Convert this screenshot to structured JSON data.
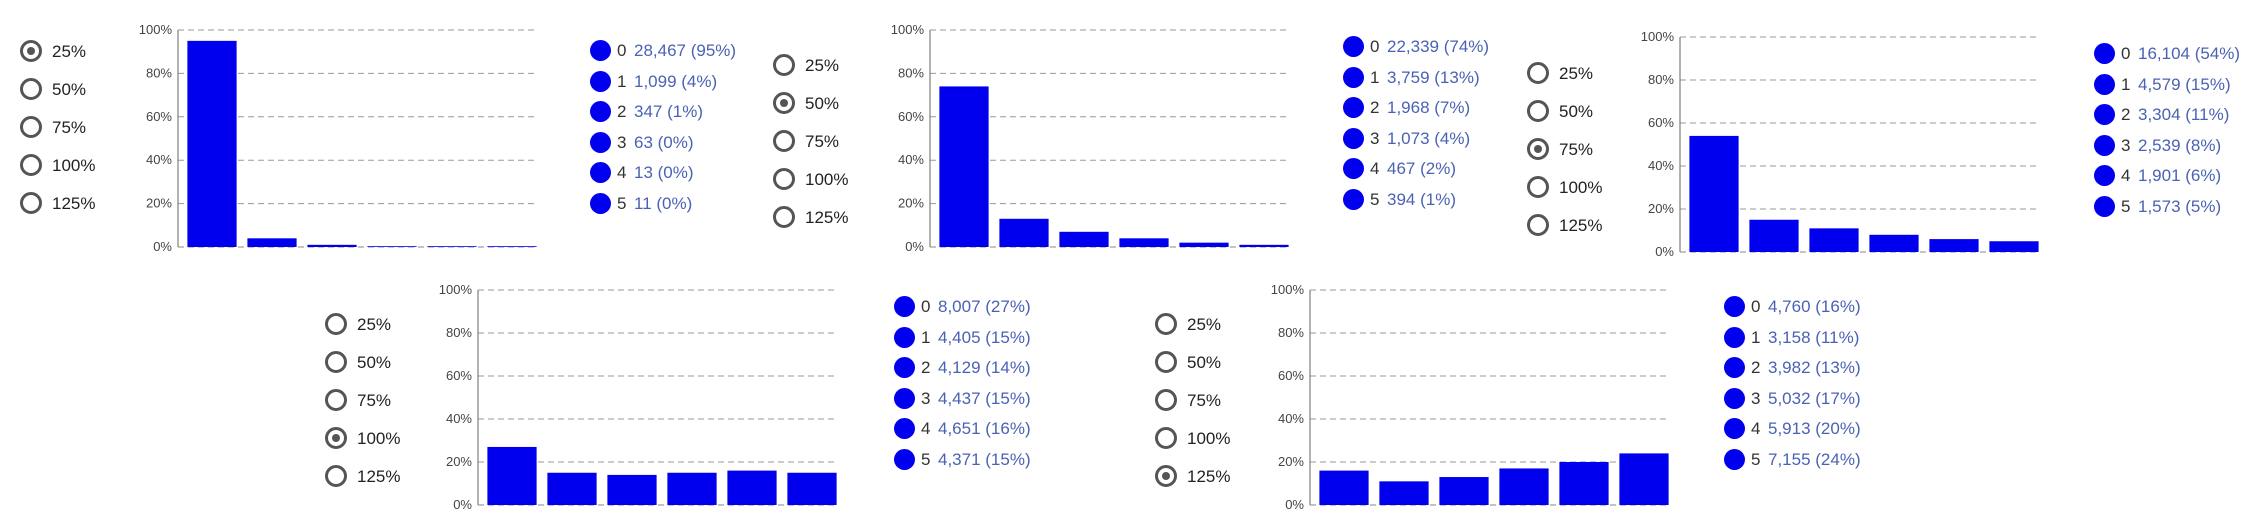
{
  "radio_options": [
    "25%",
    "50%",
    "75%",
    "100%",
    "125%"
  ],
  "legend_color": "#0000ee",
  "chart_data": [
    {
      "type": "bar",
      "selected_option": "25%",
      "categories": [
        "0",
        "1",
        "2",
        "3",
        "4",
        "5"
      ],
      "values": [
        95,
        4,
        1,
        0,
        0,
        0
      ],
      "yticks": [
        "0%",
        "20%",
        "40%",
        "60%",
        "80%",
        "100%"
      ],
      "ylim": [
        0,
        100
      ],
      "grid": true,
      "bar_color": "#0000ee",
      "legend": [
        {
          "category": "0",
          "label": "28,467 (95%)"
        },
        {
          "category": "1",
          "label": "1,099 (4%)"
        },
        {
          "category": "2",
          "label": "347 (1%)"
        },
        {
          "category": "3",
          "label": "63 (0%)"
        },
        {
          "category": "4",
          "label": "13 (0%)"
        },
        {
          "category": "5",
          "label": "11 (0%)"
        }
      ]
    },
    {
      "type": "bar",
      "selected_option": "50%",
      "categories": [
        "0",
        "1",
        "2",
        "3",
        "4",
        "5"
      ],
      "values": [
        74,
        13,
        7,
        4,
        2,
        1
      ],
      "yticks": [
        "0%",
        "20%",
        "40%",
        "60%",
        "80%",
        "100%"
      ],
      "ylim": [
        0,
        100
      ],
      "grid": true,
      "bar_color": "#0000ee",
      "legend": [
        {
          "category": "0",
          "label": "22,339 (74%)"
        },
        {
          "category": "1",
          "label": "3,759 (13%)"
        },
        {
          "category": "2",
          "label": "1,968 (7%)"
        },
        {
          "category": "3",
          "label": "1,073 (4%)"
        },
        {
          "category": "4",
          "label": "467 (2%)"
        },
        {
          "category": "5",
          "label": "394 (1%)"
        }
      ]
    },
    {
      "type": "bar",
      "selected_option": "75%",
      "categories": [
        "0",
        "1",
        "2",
        "3",
        "4",
        "5"
      ],
      "values": [
        54,
        15,
        11,
        8,
        6,
        5
      ],
      "yticks": [
        "0%",
        "20%",
        "40%",
        "60%",
        "80%",
        "100%"
      ],
      "ylim": [
        0,
        100
      ],
      "grid": true,
      "bar_color": "#0000ee",
      "legend": [
        {
          "category": "0",
          "label": "16,104 (54%)"
        },
        {
          "category": "1",
          "label": "4,579 (15%)"
        },
        {
          "category": "2",
          "label": "3,304 (11%)"
        },
        {
          "category": "3",
          "label": "2,539 (8%)"
        },
        {
          "category": "4",
          "label": "1,901 (6%)"
        },
        {
          "category": "5",
          "label": "1,573 (5%)"
        }
      ]
    },
    {
      "type": "bar",
      "selected_option": "100%",
      "categories": [
        "0",
        "1",
        "2",
        "3",
        "4",
        "5"
      ],
      "values": [
        27,
        15,
        14,
        15,
        16,
        15
      ],
      "yticks": [
        "0%",
        "20%",
        "40%",
        "60%",
        "80%",
        "100%"
      ],
      "ylim": [
        0,
        100
      ],
      "grid": true,
      "bar_color": "#0000ee",
      "legend": [
        {
          "category": "0",
          "label": "8,007 (27%)"
        },
        {
          "category": "1",
          "label": "4,405 (15%)"
        },
        {
          "category": "2",
          "label": "4,129 (14%)"
        },
        {
          "category": "3",
          "label": "4,437 (15%)"
        },
        {
          "category": "4",
          "label": "4,651 (16%)"
        },
        {
          "category": "5",
          "label": "4,371 (15%)"
        }
      ]
    },
    {
      "type": "bar",
      "selected_option": "125%",
      "categories": [
        "0",
        "1",
        "2",
        "3",
        "4",
        "5"
      ],
      "values": [
        16,
        11,
        13,
        17,
        20,
        24
      ],
      "yticks": [
        "0%",
        "20%",
        "40%",
        "60%",
        "80%",
        "100%"
      ],
      "ylim": [
        0,
        100
      ],
      "grid": true,
      "bar_color": "#0000ee",
      "legend": [
        {
          "category": "0",
          "label": "4,760 (16%)"
        },
        {
          "category": "1",
          "label": "3,158 (11%)"
        },
        {
          "category": "2",
          "label": "3,982 (13%)"
        },
        {
          "category": "3",
          "label": "5,032 (17%)"
        },
        {
          "category": "4",
          "label": "5,913 (20%)"
        },
        {
          "category": "5",
          "label": "7,155 (24%)"
        }
      ]
    }
  ]
}
